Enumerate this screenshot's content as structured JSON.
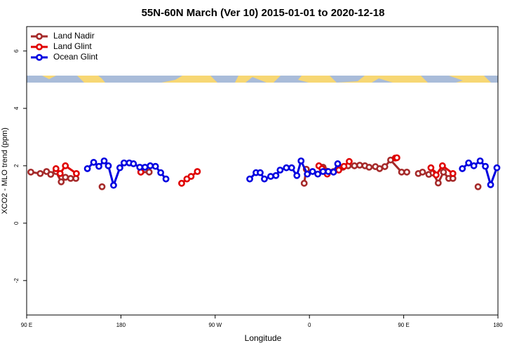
{
  "chart_data": {
    "type": "line",
    "title": "55N-60N March (Ver 10)   2015-01-01 to 2020-12-18",
    "x_label": "Longitude",
    "y_label": "XCO2 - MLO trend (ppm)",
    "xlim": [
      90,
      540
    ],
    "ylim": [
      -3.2,
      6.85
    ],
    "xticks": [
      {
        "value": 90,
        "label": "90 E"
      },
      180,
      {
        "value": 270,
        "label": "90 W"
      },
      {
        "value": 360,
        "label": "0"
      },
      {
        "value": 450,
        "label": "90 E"
      },
      {
        "value": 540,
        "label": "180"
      }
    ],
    "yticks": [
      -2,
      0,
      2,
      4,
      6
    ],
    "legend": "upper left",
    "series": [
      {
        "name": "Land Nadir",
        "color": "#a52a2a",
        "x": [
          94,
          103,
          109,
          113,
          118,
          123,
          127,
          132,
          137,
          150,
          162,
          180,
          199,
          207,
          300,
          355,
          357,
          365,
          373,
          383,
          392,
          397,
          403,
          408,
          413,
          417,
          423,
          427,
          432,
          437.5,
          448,
          453,
          458,
          464,
          468,
          474,
          478,
          483,
          488,
          493,
          497,
          510,
          521
        ],
        "values": [
          1.78,
          1.73,
          1.8,
          1.7,
          1.8,
          1.44,
          1.6,
          1.56,
          1.56,
          null,
          1.27,
          null,
          1.78,
          1.78,
          null,
          1.39,
          1.88,
          null,
          1.95,
          1.8,
          1.95,
          2.0,
          2.0,
          2.02,
          2.0,
          1.95,
          1.97,
          1.9,
          1.97,
          2.2,
          1.78,
          1.78,
          null,
          1.73,
          1.78,
          1.7,
          1.75,
          1.4,
          1.78,
          1.56,
          1.56,
          null,
          1.27
        ]
      },
      {
        "name": "Land Glint",
        "color": "#e00000",
        "x": [
          118,
          122,
          127,
          137.5,
          170,
          199,
          220,
          238,
          243,
          247,
          253,
          300,
          369,
          372,
          377,
          388,
          393,
          398,
          420,
          442,
          443.5,
          460,
          476,
          481,
          487,
          497
        ],
        "values": [
          1.9,
          1.73,
          2.0,
          1.73,
          null,
          1.78,
          null,
          1.39,
          1.54,
          1.63,
          1.8,
          null,
          2.0,
          1.9,
          1.71,
          1.85,
          1.98,
          2.15,
          null,
          2.27,
          2.28,
          null,
          1.93,
          1.68,
          2.0,
          1.73
        ]
      },
      {
        "name": "Ocean Glint",
        "color": "#0000e0",
        "x": [
          148,
          154,
          159,
          164,
          168,
          173,
          179,
          183,
          188,
          192,
          198,
          203,
          208,
          213,
          218,
          223,
          260,
          303,
          309,
          313,
          317,
          323,
          328,
          332,
          338,
          343,
          348,
          352,
          358,
          363,
          368,
          373,
          378,
          383,
          387,
          450,
          506,
          512,
          517,
          523,
          528,
          533,
          539
        ],
        "values": [
          1.9,
          2.12,
          1.98,
          2.17,
          2.0,
          1.32,
          1.93,
          2.1,
          2.1,
          2.07,
          1.95,
          1.95,
          2.0,
          1.98,
          1.76,
          1.54,
          null,
          1.54,
          1.76,
          1.76,
          1.54,
          1.63,
          1.66,
          1.85,
          1.93,
          1.93,
          1.66,
          2.17,
          1.71,
          1.8,
          1.71,
          1.8,
          1.8,
          1.78,
          2.07,
          null,
          1.9,
          2.1,
          2.0,
          2.17,
          1.98,
          1.34,
          1.93
        ]
      }
    ]
  }
}
